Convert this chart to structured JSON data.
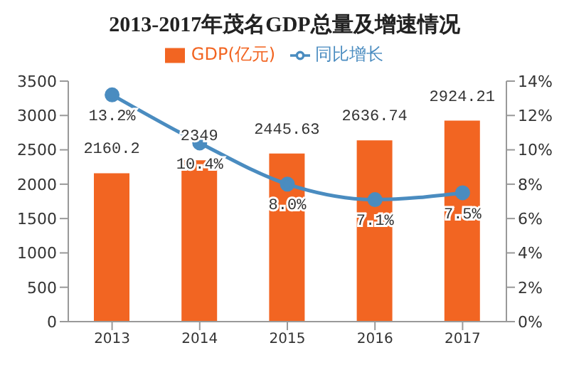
{
  "chart_data": {
    "type": "bar",
    "title": "2013-2017年茂名GDP总量及增速情况",
    "categories": [
      "2013",
      "2014",
      "2015",
      "2016",
      "2017"
    ],
    "series": [
      {
        "name": "GDP(亿元)",
        "color": "#f26522",
        "values": [
          2160.2,
          2349,
          2445.63,
          2636.74,
          2924.21
        ],
        "value_labels": [
          "2160.2",
          "2349",
          "2445.63",
          "2636.74",
          "2924.21"
        ]
      },
      {
        "name": "同比增长",
        "type": "line",
        "axis": "y2",
        "color": "#4a8cc0",
        "values": [
          13.2,
          10.4,
          8.0,
          7.1,
          7.5
        ],
        "value_labels": [
          "13.2%",
          "10.4%",
          "8.0%",
          "7.1%",
          "7.5%"
        ]
      }
    ],
    "ylim": [
      0,
      3500
    ],
    "yticks": [
      0,
      500,
      1000,
      1500,
      2000,
      2500,
      3000,
      3500
    ],
    "y2lim": [
      0,
      14
    ],
    "y2ticks": [
      {
        "value": 0,
        "label": "0%"
      },
      {
        "value": 2,
        "label": "2%"
      },
      {
        "value": 4,
        "label": "4%"
      },
      {
        "value": 6,
        "label": "6%"
      },
      {
        "value": 8,
        "label": "8%"
      },
      {
        "value": 10,
        "label": "10%"
      },
      {
        "value": 12,
        "label": "12%"
      },
      {
        "value": 14,
        "label": "14%"
      }
    ],
    "legend": "top",
    "grid": false,
    "marker": "circle",
    "line_style": "solid"
  }
}
